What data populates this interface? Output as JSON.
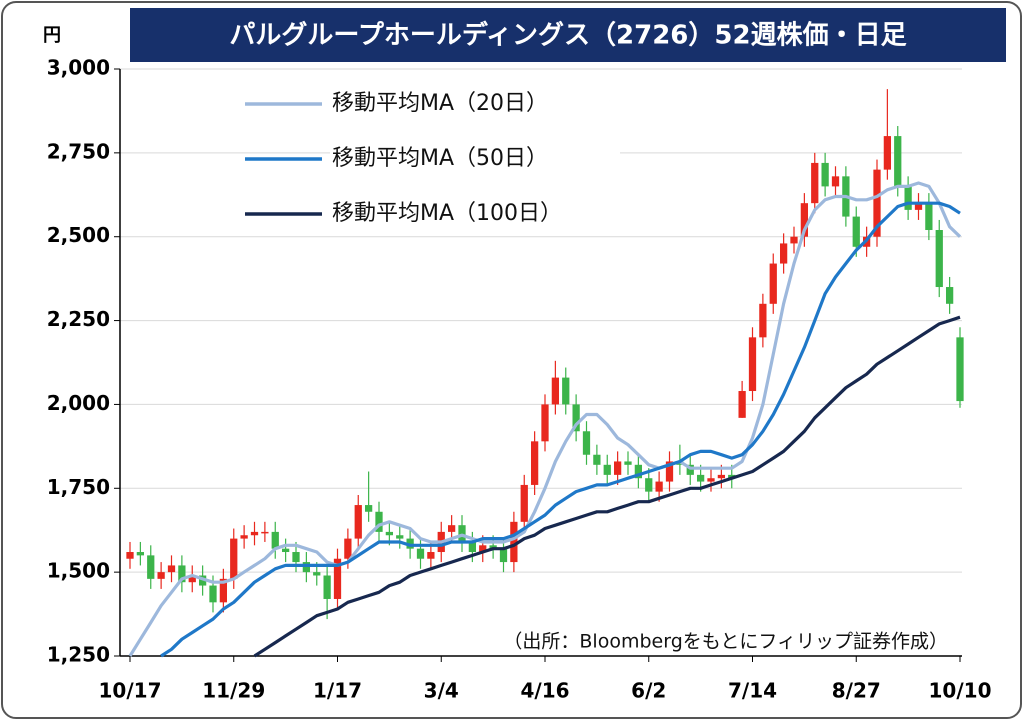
{
  "chart_data": {
    "type": "candlestick",
    "title": "パルグループホールディングス（2726）52週株価・日足",
    "y_unit": "円",
    "annotation": "（出所：Bloombergをもとにフィリップ証券作成）",
    "categories": [
      "10/17",
      null,
      null,
      null,
      null,
      null,
      null,
      null,
      null,
      null,
      "11/29",
      null,
      null,
      null,
      null,
      null,
      null,
      null,
      null,
      null,
      "1/17",
      null,
      null,
      null,
      null,
      null,
      null,
      null,
      null,
      null,
      "3/4",
      null,
      null,
      null,
      null,
      null,
      null,
      null,
      null,
      null,
      "4/16",
      null,
      null,
      null,
      null,
      null,
      null,
      null,
      null,
      null,
      "6/2",
      null,
      null,
      null,
      null,
      null,
      null,
      null,
      null,
      null,
      "7/14",
      null,
      null,
      null,
      null,
      null,
      null,
      null,
      null,
      null,
      "8/27",
      null,
      null,
      null,
      null,
      null,
      null,
      null,
      null,
      null,
      "10/10"
    ],
    "open": [
      1540,
      1560,
      1550,
      1480,
      1500,
      1520,
      1470,
      1490,
      1460,
      1410,
      1480,
      1600,
      1610,
      1620,
      1620,
      1570,
      1560,
      1530,
      1500,
      1490,
      1420,
      1540,
      1600,
      1700,
      1680,
      1620,
      1610,
      1600,
      1570,
      1540,
      1560,
      1620,
      1640,
      1590,
      1560,
      1580,
      1570,
      1530,
      1650,
      1760,
      1890,
      2000,
      2080,
      2000,
      1920,
      1850,
      1820,
      1790,
      1830,
      1820,
      1780,
      1740,
      1770,
      1830,
      1820,
      1790,
      1770,
      1780,
      1790,
      1960,
      2040,
      2200,
      2300,
      2420,
      2480,
      2500,
      2600,
      2720,
      2650,
      2680,
      2560,
      2470,
      2500,
      2700,
      2800,
      2650,
      2580,
      2600,
      2520,
      2350,
      2200
    ],
    "high": [
      1590,
      1590,
      1580,
      1530,
      1550,
      1550,
      1520,
      1520,
      1490,
      1510,
      1630,
      1640,
      1650,
      1650,
      1650,
      1600,
      1590,
      1560,
      1530,
      1520,
      1570,
      1630,
      1730,
      1800,
      1710,
      1650,
      1640,
      1630,
      1600,
      1590,
      1650,
      1670,
      1670,
      1620,
      1610,
      1610,
      1600,
      1680,
      1790,
      1920,
      2030,
      2130,
      2110,
      2030,
      1950,
      1880,
      1850,
      1860,
      1860,
      1850,
      1810,
      1800,
      1860,
      1880,
      1850,
      1820,
      1810,
      1820,
      1820,
      2070,
      2230,
      2330,
      2450,
      2510,
      2530,
      2630,
      2750,
      2750,
      2710,
      2710,
      2590,
      2530,
      2730,
      2940,
      2830,
      2680,
      2630,
      2630,
      2550,
      2380,
      2230
    ],
    "low": [
      1510,
      1520,
      1450,
      1450,
      1470,
      1440,
      1440,
      1430,
      1380,
      1380,
      1450,
      1570,
      1580,
      1590,
      1540,
      1530,
      1500,
      1470,
      1460,
      1360,
      1390,
      1510,
      1570,
      1650,
      1590,
      1580,
      1570,
      1540,
      1510,
      1510,
      1530,
      1590,
      1560,
      1530,
      1530,
      1540,
      1500,
      1500,
      1620,
      1730,
      1860,
      1970,
      1970,
      1890,
      1820,
      1790,
      1760,
      1760,
      1790,
      1750,
      1710,
      1710,
      1740,
      1790,
      1760,
      1740,
      1740,
      1750,
      1750,
      1960,
      2010,
      2170,
      2270,
      2390,
      2450,
      2470,
      2570,
      2620,
      2620,
      2530,
      2440,
      2440,
      2470,
      2670,
      2620,
      2550,
      2550,
      2490,
      2320,
      2270,
      1990
    ],
    "close": [
      1560,
      1550,
      1480,
      1500,
      1520,
      1470,
      1490,
      1460,
      1410,
      1480,
      1600,
      1610,
      1620,
      1620,
      1570,
      1560,
      1530,
      1500,
      1490,
      1420,
      1540,
      1600,
      1700,
      1680,
      1620,
      1610,
      1600,
      1570,
      1540,
      1560,
      1620,
      1640,
      1590,
      1560,
      1580,
      1570,
      1530,
      1650,
      1760,
      1890,
      2000,
      2080,
      2000,
      1920,
      1850,
      1820,
      1790,
      1830,
      1820,
      1780,
      1740,
      1770,
      1830,
      1820,
      1790,
      1770,
      1780,
      1790,
      1780,
      2040,
      2200,
      2300,
      2420,
      2480,
      2500,
      2600,
      2720,
      2650,
      2680,
      2560,
      2470,
      2500,
      2700,
      2800,
      2650,
      2580,
      2600,
      2520,
      2350,
      2300,
      2010
    ],
    "up_color": "#e8281e",
    "down_color": "#3cb44a",
    "series": [
      {
        "name": "移動平均MA（20日）",
        "color": "#9db8dc",
        "values": [
          1250,
          1300,
          1350,
          1400,
          1440,
          1480,
          1490,
          1480,
          1470,
          1470,
          1480,
          1500,
          1520,
          1540,
          1570,
          1580,
          1580,
          1570,
          1560,
          1530,
          1520,
          1530,
          1570,
          1610,
          1640,
          1650,
          1640,
          1630,
          1600,
          1590,
          1590,
          1600,
          1610,
          1600,
          1590,
          1590,
          1590,
          1600,
          1620,
          1680,
          1750,
          1830,
          1890,
          1940,
          1970,
          1970,
          1940,
          1900,
          1880,
          1850,
          1820,
          1810,
          1820,
          1830,
          1810,
          1810,
          1810,
          1810,
          1810,
          1830,
          1900,
          2000,
          2150,
          2300,
          2420,
          2520,
          2580,
          2610,
          2620,
          2620,
          2610,
          2610,
          2620,
          2640,
          2650,
          2650,
          2660,
          2650,
          2600,
          2530,
          2500
        ]
      },
      {
        "name": "移動平均MA（50日）",
        "color": "#1f78c8",
        "values": [
          null,
          null,
          null,
          1250,
          1270,
          1300,
          1320,
          1340,
          1360,
          1390,
          1410,
          1440,
          1470,
          1490,
          1510,
          1520,
          1520,
          1520,
          1520,
          1520,
          1520,
          1530,
          1550,
          1570,
          1590,
          1590,
          1590,
          1580,
          1580,
          1580,
          1580,
          1590,
          1590,
          1590,
          1600,
          1600,
          1600,
          1610,
          1630,
          1650,
          1670,
          1700,
          1720,
          1740,
          1750,
          1760,
          1760,
          1770,
          1780,
          1790,
          1800,
          1810,
          1820,
          1830,
          1850,
          1860,
          1860,
          1850,
          1840,
          1850,
          1880,
          1920,
          1970,
          2030,
          2100,
          2170,
          2250,
          2330,
          2380,
          2420,
          2460,
          2490,
          2530,
          2560,
          2590,
          2600,
          2600,
          2600,
          2600,
          2590,
          2570
        ]
      },
      {
        "name": "移動平均MA（100日）",
        "color": "#17284f",
        "values": [
          null,
          null,
          null,
          null,
          null,
          null,
          null,
          null,
          null,
          null,
          null,
          null,
          1250,
          1270,
          1290,
          1310,
          1330,
          1350,
          1370,
          1380,
          1390,
          1410,
          1420,
          1430,
          1440,
          1460,
          1470,
          1490,
          1500,
          1510,
          1520,
          1530,
          1540,
          1550,
          1560,
          1570,
          1570,
          1580,
          1600,
          1610,
          1630,
          1640,
          1650,
          1660,
          1670,
          1680,
          1680,
          1690,
          1700,
          1710,
          1710,
          1720,
          1730,
          1740,
          1750,
          1750,
          1760,
          1770,
          1780,
          1790,
          1800,
          1820,
          1840,
          1860,
          1890,
          1920,
          1960,
          1990,
          2020,
          2050,
          2070,
          2090,
          2120,
          2140,
          2160,
          2180,
          2200,
          2220,
          2240,
          2250,
          2260
        ]
      }
    ],
    "ylim": [
      1250,
      3000
    ],
    "yticks": [
      {
        "value": 1250,
        "label": "1,250"
      },
      {
        "value": 1500,
        "label": "1,500"
      },
      {
        "value": 1750,
        "label": "1,750"
      },
      {
        "value": 2000,
        "label": "2,000"
      },
      {
        "value": 2250,
        "label": "2,250"
      },
      {
        "value": 2500,
        "label": "2,500"
      },
      {
        "value": 2750,
        "label": "2,750"
      },
      {
        "value": 3000,
        "label": "3,000"
      }
    ],
    "grid": true
  }
}
